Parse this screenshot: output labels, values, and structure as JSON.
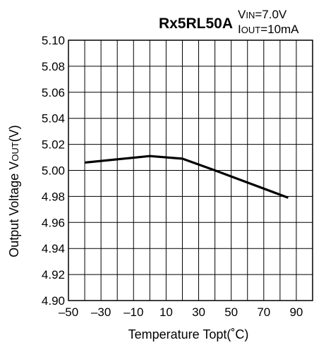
{
  "chart_data": {
    "type": "line",
    "title": "Rx5RL50A",
    "conditions": [
      {
        "symbol": "V",
        "sub": "IN",
        "value": "=7.0V"
      },
      {
        "symbol": "I",
        "sub": "OUT",
        "value": "=10mA"
      }
    ],
    "xlabel": {
      "main": "Temperature Topt(",
      "unit": "˚C)"
    },
    "ylabel": {
      "main": "Output Voltage V",
      "sub": "OUT",
      "unit": "(V)"
    },
    "xlim": [
      -50,
      100
    ],
    "ylim": [
      4.9,
      5.1
    ],
    "x_ticks": [
      -50,
      -30,
      -10,
      10,
      30,
      50,
      70,
      90
    ],
    "x_tick_labels": [
      "–50",
      "–30",
      "–10",
      "10",
      "30",
      "50",
      "70",
      "90"
    ],
    "y_ticks": [
      4.9,
      4.92,
      4.94,
      4.96,
      4.98,
      5.0,
      5.02,
      5.04,
      5.06,
      5.08,
      5.1
    ],
    "y_tick_labels": [
      "4.90",
      "4.92",
      "4.94",
      "4.96",
      "4.98",
      "5.00",
      "5.02",
      "5.04",
      "5.06",
      "5.08",
      "5.10"
    ],
    "x_grid_step": 10,
    "y_grid_step": 0.02,
    "grid": true,
    "series": [
      {
        "x": [
          -40,
          0,
          20,
          40,
          85
        ],
        "y": [
          5.006,
          5.011,
          5.009,
          5.0,
          4.979
        ]
      }
    ],
    "line_color": "#000000",
    "grid_color": "#000000"
  }
}
